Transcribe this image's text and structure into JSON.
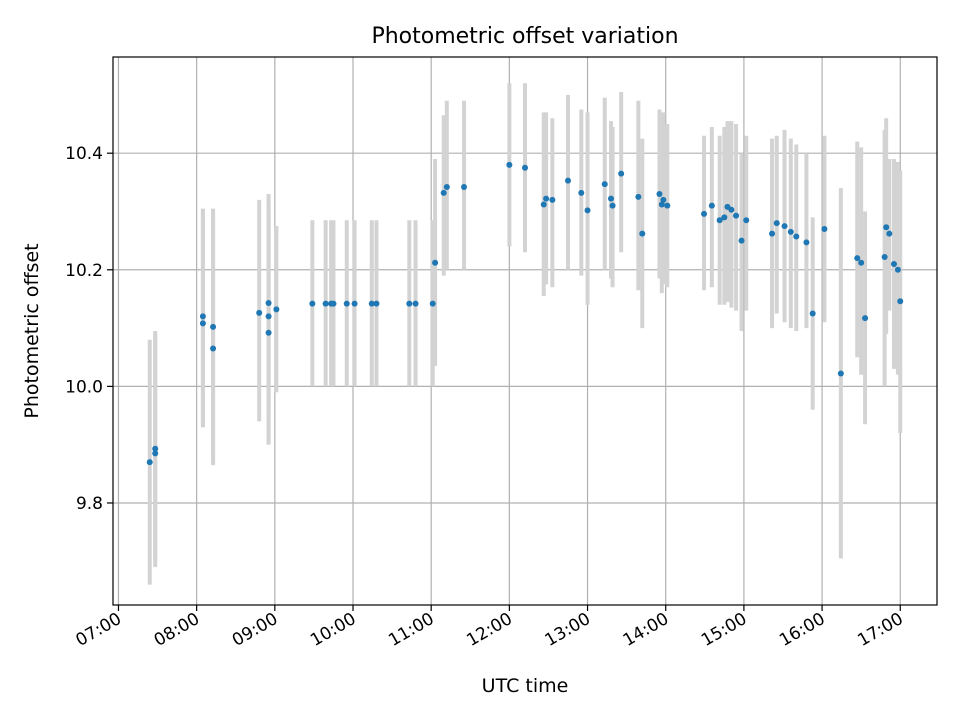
{
  "chart_data": {
    "type": "scatter",
    "title": "Photometric offset variation",
    "xlabel": "UTC time",
    "ylabel": "Photometric offset",
    "xlim": [
      6.93,
      17.47
    ],
    "ylim": [
      9.625,
      10.565
    ],
    "x_ticks": [
      {
        "value": 7,
        "label": "07:00"
      },
      {
        "value": 8,
        "label": "08:00"
      },
      {
        "value": 9,
        "label": "09:00"
      },
      {
        "value": 10,
        "label": "10:00"
      },
      {
        "value": 11,
        "label": "11:00"
      },
      {
        "value": 12,
        "label": "12:00"
      },
      {
        "value": 13,
        "label": "13:00"
      },
      {
        "value": 14,
        "label": "14:00"
      },
      {
        "value": 15,
        "label": "15:00"
      },
      {
        "value": 16,
        "label": "16:00"
      },
      {
        "value": 17,
        "label": "17:00"
      }
    ],
    "y_ticks": [
      {
        "value": 9.8,
        "label": "9.8"
      },
      {
        "value": 10.0,
        "label": "10.0"
      },
      {
        "value": 10.2,
        "label": "10.2"
      },
      {
        "value": 10.4,
        "label": "10.4"
      }
    ],
    "grid": true,
    "colors": {
      "marker": "#1f77b4",
      "errorbar": "#d3d3d3",
      "grid": "#b0b0b0",
      "axis": "#000000"
    },
    "series": [
      {
        "name": "offset",
        "points": [
          {
            "t": 7.4,
            "y": 9.87,
            "lo": 9.66,
            "hi": 10.08
          },
          {
            "t": 7.47,
            "y": 9.885,
            "lo": 9.69,
            "hi": 10.095
          },
          {
            "t": 7.47,
            "y": 9.893,
            "lo": 9.7,
            "hi": 10.09
          },
          {
            "t": 8.08,
            "y": 10.12,
            "lo": 9.93,
            "hi": 10.305
          },
          {
            "t": 8.08,
            "y": 10.108,
            "lo": 9.93,
            "hi": 10.3
          },
          {
            "t": 8.21,
            "y": 10.102,
            "lo": 9.87,
            "hi": 10.305
          },
          {
            "t": 8.21,
            "y": 10.065,
            "lo": 9.865,
            "hi": 10.3
          },
          {
            "t": 8.8,
            "y": 10.126,
            "lo": 9.94,
            "hi": 10.32
          },
          {
            "t": 8.92,
            "y": 10.143,
            "lo": 9.95,
            "hi": 10.33
          },
          {
            "t": 8.92,
            "y": 10.12,
            "lo": 9.9,
            "hi": 10.325
          },
          {
            "t": 8.92,
            "y": 10.092,
            "lo": 9.9,
            "hi": 10.3
          },
          {
            "t": 9.02,
            "y": 10.132,
            "lo": 9.99,
            "hi": 10.275
          },
          {
            "t": 9.48,
            "y": 10.142,
            "lo": 10.0,
            "hi": 10.285
          },
          {
            "t": 9.65,
            "y": 10.142,
            "lo": 10.0,
            "hi": 10.285
          },
          {
            "t": 9.72,
            "y": 10.142,
            "lo": 10.0,
            "hi": 10.285
          },
          {
            "t": 9.75,
            "y": 10.142,
            "lo": 10.0,
            "hi": 10.285
          },
          {
            "t": 9.92,
            "y": 10.142,
            "lo": 10.0,
            "hi": 10.285
          },
          {
            "t": 10.02,
            "y": 10.142,
            "lo": 10.0,
            "hi": 10.285
          },
          {
            "t": 10.24,
            "y": 10.142,
            "lo": 10.0,
            "hi": 10.285
          },
          {
            "t": 10.3,
            "y": 10.142,
            "lo": 10.0,
            "hi": 10.285
          },
          {
            "t": 10.72,
            "y": 10.142,
            "lo": 10.0,
            "hi": 10.285
          },
          {
            "t": 10.8,
            "y": 10.142,
            "lo": 10.0,
            "hi": 10.285
          },
          {
            "t": 11.02,
            "y": 10.142,
            "lo": 10.0,
            "hi": 10.285
          },
          {
            "t": 11.05,
            "y": 10.212,
            "lo": 10.035,
            "hi": 10.39
          },
          {
            "t": 11.16,
            "y": 10.332,
            "lo": 10.19,
            "hi": 10.465
          },
          {
            "t": 11.2,
            "y": 10.342,
            "lo": 10.2,
            "hi": 10.49
          },
          {
            "t": 11.42,
            "y": 10.342,
            "lo": 10.2,
            "hi": 10.49
          },
          {
            "t": 12.0,
            "y": 10.38,
            "lo": 10.24,
            "hi": 10.52
          },
          {
            "t": 12.2,
            "y": 10.375,
            "lo": 10.23,
            "hi": 10.52
          },
          {
            "t": 12.44,
            "y": 10.312,
            "lo": 10.155,
            "hi": 10.47
          },
          {
            "t": 12.47,
            "y": 10.322,
            "lo": 10.175,
            "hi": 10.47
          },
          {
            "t": 12.55,
            "y": 10.32,
            "lo": 10.17,
            "hi": 10.46
          },
          {
            "t": 12.75,
            "y": 10.353,
            "lo": 10.2,
            "hi": 10.5
          },
          {
            "t": 12.92,
            "y": 10.332,
            "lo": 10.19,
            "hi": 10.475
          },
          {
            "t": 13.0,
            "y": 10.302,
            "lo": 10.14,
            "hi": 10.47
          },
          {
            "t": 13.22,
            "y": 10.347,
            "lo": 10.2,
            "hi": 10.495
          },
          {
            "t": 13.3,
            "y": 10.322,
            "lo": 10.185,
            "hi": 10.455
          },
          {
            "t": 13.32,
            "y": 10.31,
            "lo": 10.17,
            "hi": 10.445
          },
          {
            "t": 13.43,
            "y": 10.365,
            "lo": 10.23,
            "hi": 10.505
          },
          {
            "t": 13.65,
            "y": 10.325,
            "lo": 10.165,
            "hi": 10.49
          },
          {
            "t": 13.7,
            "y": 10.262,
            "lo": 10.1,
            "hi": 10.425
          },
          {
            "t": 13.92,
            "y": 10.33,
            "lo": 10.185,
            "hi": 10.475
          },
          {
            "t": 13.95,
            "y": 10.312,
            "lo": 10.16,
            "hi": 10.46
          },
          {
            "t": 13.97,
            "y": 10.32,
            "lo": 10.175,
            "hi": 10.47
          },
          {
            "t": 14.02,
            "y": 10.31,
            "lo": 10.17,
            "hi": 10.45
          },
          {
            "t": 14.49,
            "y": 10.296,
            "lo": 10.165,
            "hi": 10.43
          },
          {
            "t": 14.59,
            "y": 10.31,
            "lo": 10.17,
            "hi": 10.445
          },
          {
            "t": 14.69,
            "y": 10.285,
            "lo": 10.14,
            "hi": 10.43
          },
          {
            "t": 14.75,
            "y": 10.29,
            "lo": 10.14,
            "hi": 10.445
          },
          {
            "t": 14.79,
            "y": 10.308,
            "lo": 10.145,
            "hi": 10.455
          },
          {
            "t": 14.84,
            "y": 10.303,
            "lo": 10.135,
            "hi": 10.455
          },
          {
            "t": 14.9,
            "y": 10.293,
            "lo": 10.13,
            "hi": 10.45
          },
          {
            "t": 14.97,
            "y": 10.25,
            "lo": 10.095,
            "hi": 10.4
          },
          {
            "t": 15.03,
            "y": 10.285,
            "lo": 10.13,
            "hi": 10.43
          },
          {
            "t": 15.36,
            "y": 10.262,
            "lo": 10.1,
            "hi": 10.425
          },
          {
            "t": 15.42,
            "y": 10.28,
            "lo": 10.125,
            "hi": 10.43
          },
          {
            "t": 15.52,
            "y": 10.275,
            "lo": 10.11,
            "hi": 10.44
          },
          {
            "t": 15.6,
            "y": 10.265,
            "lo": 10.1,
            "hi": 10.425
          },
          {
            "t": 15.67,
            "y": 10.257,
            "lo": 10.095,
            "hi": 10.415
          },
          {
            "t": 15.8,
            "y": 10.247,
            "lo": 10.1,
            "hi": 10.4
          },
          {
            "t": 15.88,
            "y": 10.125,
            "lo": 9.96,
            "hi": 10.29
          },
          {
            "t": 16.03,
            "y": 10.27,
            "lo": 10.11,
            "hi": 10.43
          },
          {
            "t": 16.24,
            "y": 10.022,
            "lo": 9.705,
            "hi": 10.34
          },
          {
            "t": 16.45,
            "y": 10.22,
            "lo": 10.05,
            "hi": 10.42
          },
          {
            "t": 16.5,
            "y": 10.212,
            "lo": 10.02,
            "hi": 10.41
          },
          {
            "t": 16.55,
            "y": 10.117,
            "lo": 9.935,
            "hi": 10.3
          },
          {
            "t": 16.8,
            "y": 10.222,
            "lo": 10.0,
            "hi": 10.44
          },
          {
            "t": 16.82,
            "y": 10.273,
            "lo": 10.09,
            "hi": 10.46
          },
          {
            "t": 16.86,
            "y": 10.262,
            "lo": 10.13,
            "hi": 10.39
          },
          {
            "t": 16.92,
            "y": 10.21,
            "lo": 10.03,
            "hi": 10.39
          },
          {
            "t": 16.97,
            "y": 10.2,
            "lo": 10.02,
            "hi": 10.385
          },
          {
            "t": 17.0,
            "y": 10.146,
            "lo": 9.92,
            "hi": 10.37
          }
        ]
      }
    ]
  }
}
